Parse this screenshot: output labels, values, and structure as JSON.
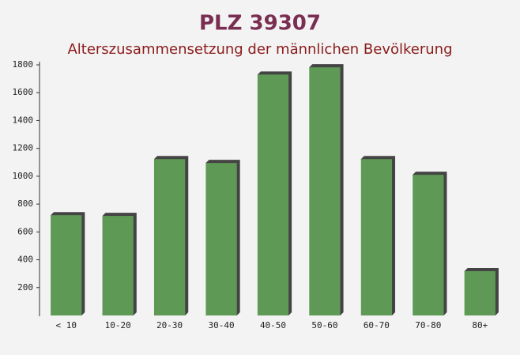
{
  "chart_data": {
    "type": "bar",
    "title": "PLZ 39307",
    "subtitle": "Alterszusammensetzung der männlichen Bevölkerung",
    "categories": [
      "< 10",
      "10-20",
      "20-30",
      "30-40",
      "40-50",
      "50-60",
      "60-70",
      "70-80",
      "80+"
    ],
    "values": [
      720,
      715,
      1123,
      1095,
      1730,
      1782,
      1123,
      1010,
      318
    ],
    "color": "#5e9a55",
    "ylim": [
      0,
      1800
    ],
    "yticks": [
      200,
      400,
      600,
      800,
      1000,
      1200,
      1400,
      1600,
      1800
    ]
  }
}
